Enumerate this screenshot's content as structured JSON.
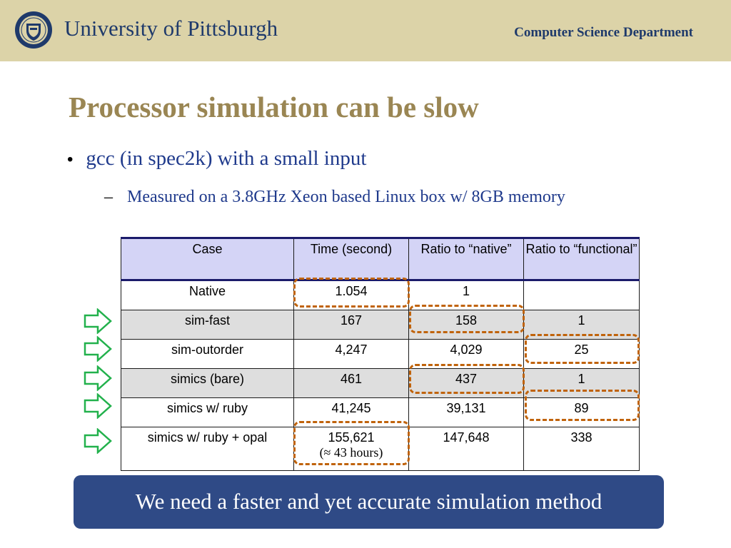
{
  "header": {
    "university": "University of Pittsburgh",
    "department": "Computer Science Department",
    "accent_color": "#dcd3a8",
    "text_color": "#1f3a6b"
  },
  "slide": {
    "title": "Processor simulation can be slow",
    "bullet": "gcc (in spec2k) with a small input",
    "sub_bullet_dash": "–",
    "sub_bullet": "Measured on a 3.8GHz Xeon based Linux box w/ 8GB memory"
  },
  "table": {
    "headers": [
      "Case",
      "Time (second)",
      "Ratio to “native”",
      "Ratio to “functional”"
    ],
    "rows": [
      {
        "case": "Native",
        "time": "1.054",
        "ratio_native": "1",
        "ratio_functional": ""
      },
      {
        "case": "sim-fast",
        "time": "167",
        "ratio_native": "158",
        "ratio_functional": "1"
      },
      {
        "case": "sim-outorder",
        "time": "4,247",
        "ratio_native": "4,029",
        "ratio_functional": "25"
      },
      {
        "case": "simics (bare)",
        "time": "461",
        "ratio_native": "437",
        "ratio_functional": "1"
      },
      {
        "case": "simics w/ ruby",
        "time": "41,245",
        "ratio_native": "39,131",
        "ratio_functional": "89"
      },
      {
        "case": "simics w/ ruby + opal",
        "time": "155,621",
        "time_note": "(≈ 43 hours)",
        "ratio_native": "147,648",
        "ratio_functional": "338"
      }
    ]
  },
  "callout": "We need a faster and yet accurate simulation method",
  "colors": {
    "title": "#9a8653",
    "body_text": "#1f3a8c",
    "highlight_box": "#c0630b",
    "arrow": "#22b14c",
    "header_row": "#d4d4f6",
    "shaded_row": "#dedede",
    "callout_bg": "#2f4a86"
  }
}
